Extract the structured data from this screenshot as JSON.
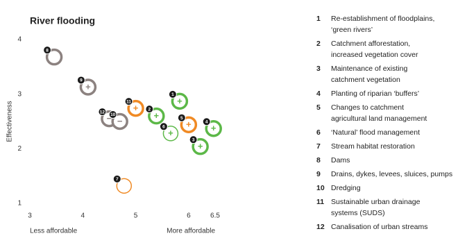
{
  "chart_data": {
    "type": "scatter",
    "title": "River flooding",
    "ylabel": "Effectiveness",
    "xlabel_left": "Less affordable",
    "xlabel_right": "More affordable",
    "xlim": [
      3,
      6.5
    ],
    "xticks": [
      3,
      4,
      5,
      6,
      6.5
    ],
    "ylim": [
      1,
      4
    ],
    "yticks": [
      1,
      2,
      3,
      4
    ],
    "points": [
      {
        "label": "8",
        "x": 3.46,
        "y": 3.68,
        "color": "#8c8280",
        "sign": null,
        "ring": "thick"
      },
      {
        "label": "9",
        "x": 4.1,
        "y": 3.13,
        "color": "#8c8280",
        "sign": "+",
        "ring": "thick"
      },
      {
        "label": "12",
        "x": 4.5,
        "y": 2.55,
        "color": "#8c8280",
        "sign": "−",
        "ring": "thick"
      },
      {
        "label": "10",
        "x": 4.7,
        "y": 2.5,
        "color": "#8c8280",
        "sign": "−",
        "ring": "thick"
      },
      {
        "label": "11",
        "x": 5.0,
        "y": 2.74,
        "color": "#f08a24",
        "sign": "+",
        "ring": "thick"
      },
      {
        "label": "2",
        "x": 5.39,
        "y": 2.6,
        "color": "#5cb848",
        "sign": "+",
        "ring": "thick"
      },
      {
        "label": "1",
        "x": 5.83,
        "y": 2.87,
        "color": "#5cb848",
        "sign": "+",
        "ring": "thick"
      },
      {
        "label": "6",
        "x": 5.66,
        "y": 2.28,
        "color": "#5cb848",
        "sign": "+",
        "ring": "thin"
      },
      {
        "label": "5",
        "x": 6.0,
        "y": 2.44,
        "color": "#f08a24",
        "sign": "+",
        "ring": "thick"
      },
      {
        "label": "4",
        "x": 6.47,
        "y": 2.37,
        "color": "#5cb848",
        "sign": "+",
        "ring": "thick"
      },
      {
        "label": "3",
        "x": 6.22,
        "y": 2.04,
        "color": "#5cb848",
        "sign": "+",
        "ring": "thick"
      },
      {
        "label": "7",
        "x": 4.78,
        "y": 1.32,
        "color": "#f08a24",
        "sign": null,
        "ring": "thin"
      }
    ],
    "legend": [
      {
        "number": "1",
        "lines": [
          "Re-establishment of floodplains,",
          "‘green rivers’"
        ]
      },
      {
        "number": "2",
        "lines": [
          "Catchment afforestation,",
          "increased vegetation cover"
        ]
      },
      {
        "number": "3",
        "lines": [
          "Maintenance of existing",
          "catchment vegetation"
        ]
      },
      {
        "number": "4",
        "lines": [
          "Planting of riparian ‘buffers’"
        ]
      },
      {
        "number": "5",
        "lines": [
          "Changes to catchment",
          "agricultural land management"
        ]
      },
      {
        "number": "6",
        "lines": [
          "‘Natural’ flood management"
        ]
      },
      {
        "number": "7",
        "lines": [
          "Stream habitat restoration"
        ]
      },
      {
        "number": "8",
        "lines": [
          "Dams"
        ]
      },
      {
        "number": "9",
        "lines": [
          "Drains, dykes, levees, sluices, pumps"
        ]
      },
      {
        "number": "10",
        "lines": [
          "Dredging"
        ]
      },
      {
        "number": "11",
        "lines": [
          "Sustainable urban drainage",
          "systems (SUDS)"
        ]
      },
      {
        "number": "12",
        "lines": [
          "Canalisation of urban streams"
        ]
      }
    ]
  }
}
